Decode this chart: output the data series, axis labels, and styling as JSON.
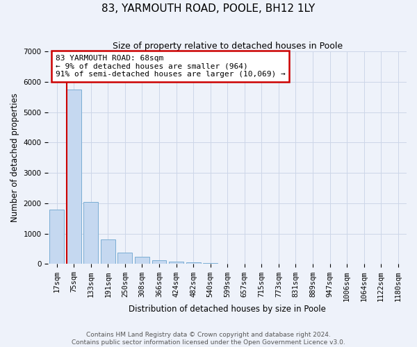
{
  "title": "83, YARMOUTH ROAD, POOLE, BH12 1LY",
  "subtitle": "Size of property relative to detached houses in Poole",
  "xlabel": "Distribution of detached houses by size in Poole",
  "ylabel": "Number of detached properties",
  "categories": [
    "17sqm",
    "75sqm",
    "133sqm",
    "191sqm",
    "250sqm",
    "308sqm",
    "366sqm",
    "424sqm",
    "482sqm",
    "540sqm",
    "599sqm",
    "657sqm",
    "715sqm",
    "773sqm",
    "831sqm",
    "889sqm",
    "947sqm",
    "1006sqm",
    "1064sqm",
    "1122sqm",
    "1180sqm"
  ],
  "values": [
    1800,
    5750,
    2050,
    820,
    370,
    230,
    120,
    80,
    60,
    30,
    20,
    0,
    0,
    0,
    0,
    0,
    0,
    0,
    0,
    0,
    0
  ],
  "bar_color": "#c5d8f0",
  "bar_edge_color": "#7aadd4",
  "annotation_text": "83 YARMOUTH ROAD: 68sqm\n← 9% of detached houses are smaller (964)\n91% of semi-detached houses are larger (10,069) →",
  "annotation_box_color": "#ffffff",
  "annotation_box_edge_color": "#cc0000",
  "property_line_color": "#cc0000",
  "grid_color": "#ccd6e8",
  "background_color": "#eef2fa",
  "footer_text": "Contains HM Land Registry data © Crown copyright and database right 2024.\nContains public sector information licensed under the Open Government Licence v3.0.",
  "ylim": [
    0,
    7000
  ],
  "title_fontsize": 11,
  "subtitle_fontsize": 9,
  "axis_label_fontsize": 8.5,
  "tick_fontsize": 7.5,
  "annotation_fontsize": 8,
  "footer_fontsize": 6.5
}
